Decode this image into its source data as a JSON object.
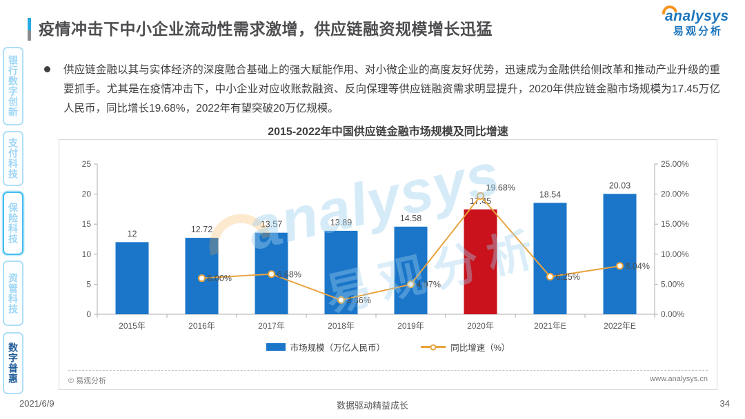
{
  "header": {
    "title": "疫情冲击下中小企业流动性需求激增，供应链融资规模增长迅猛",
    "logo_text": "analysys",
    "logo_subtext": "易观分析"
  },
  "sidebar": {
    "items": [
      {
        "label": "银行数字创新",
        "active": false
      },
      {
        "label": "支付科技",
        "active": false
      },
      {
        "label": "保险科技",
        "active": false,
        "emphasized_border": true
      },
      {
        "label": "资管科技",
        "active": false
      },
      {
        "label": "数字普惠",
        "active": true
      }
    ]
  },
  "summary": {
    "text": "供应链金融以其与实体经济的深度融合基础上的强大赋能作用、对小微企业的高度友好优势，迅速成为金融供给侧改革和推动产业升级的重要抓手。尤其是在疫情冲击下，中小企业对应收账款融资、反向保理等供应链融资需求明显提升，2020年供应链金融市场规模为17.45万亿人民币，同比增长19.68%，2022年有望突破20万亿规模。"
  },
  "chart_card": {
    "copyright": "© 易观分析",
    "website": "www.analysys.cn",
    "watermark_text": "analysys",
    "watermark_subtext": "易观分析"
  },
  "chart_data": {
    "type": "bar+line",
    "title": "2015-2022年中国供应链金融市场规模及同比增速",
    "categories": [
      "2015年",
      "2016年",
      "2017年",
      "2018年",
      "2019年",
      "2020年",
      "2021年E",
      "2022年E"
    ],
    "series": [
      {
        "name": "市场规模（万亿人民币）",
        "type": "bar",
        "values": [
          12,
          12.72,
          13.57,
          13.89,
          14.58,
          17.45,
          18.54,
          20.03
        ],
        "labels": [
          "12",
          "12.72",
          "13.57",
          "13.89",
          "14.58",
          "17.45",
          "18.54",
          "20.03"
        ],
        "color": "#1B76C9",
        "highlight_index": 5,
        "highlight_color": "#C9121C"
      },
      {
        "name": "同比增速（%）",
        "type": "line",
        "values": [
          null,
          6.0,
          6.68,
          2.36,
          4.97,
          19.68,
          6.25,
          8.04
        ],
        "labels": [
          "",
          "6.00%",
          "6.68%",
          "2.36%",
          "4.97%",
          "19.68%",
          "6.25%",
          "8.04%"
        ],
        "color": "#E8A33D",
        "marker": "white-circle"
      }
    ],
    "left_axis": {
      "min": 0,
      "max": 25,
      "ticks": [
        "0",
        "5",
        "10",
        "15",
        "20",
        "25"
      ]
    },
    "right_axis": {
      "min": 0,
      "max": 25,
      "ticks": [
        "0.00%",
        "5.00%",
        "10.00%",
        "15.00%",
        "20.00%",
        "25.00%"
      ]
    },
    "grid": false,
    "legend_position": "bottom",
    "axis_color": "#ADADAD"
  },
  "footer": {
    "date": "2021/6/9",
    "slogan": "数据驱动精益成长",
    "page": "34"
  }
}
